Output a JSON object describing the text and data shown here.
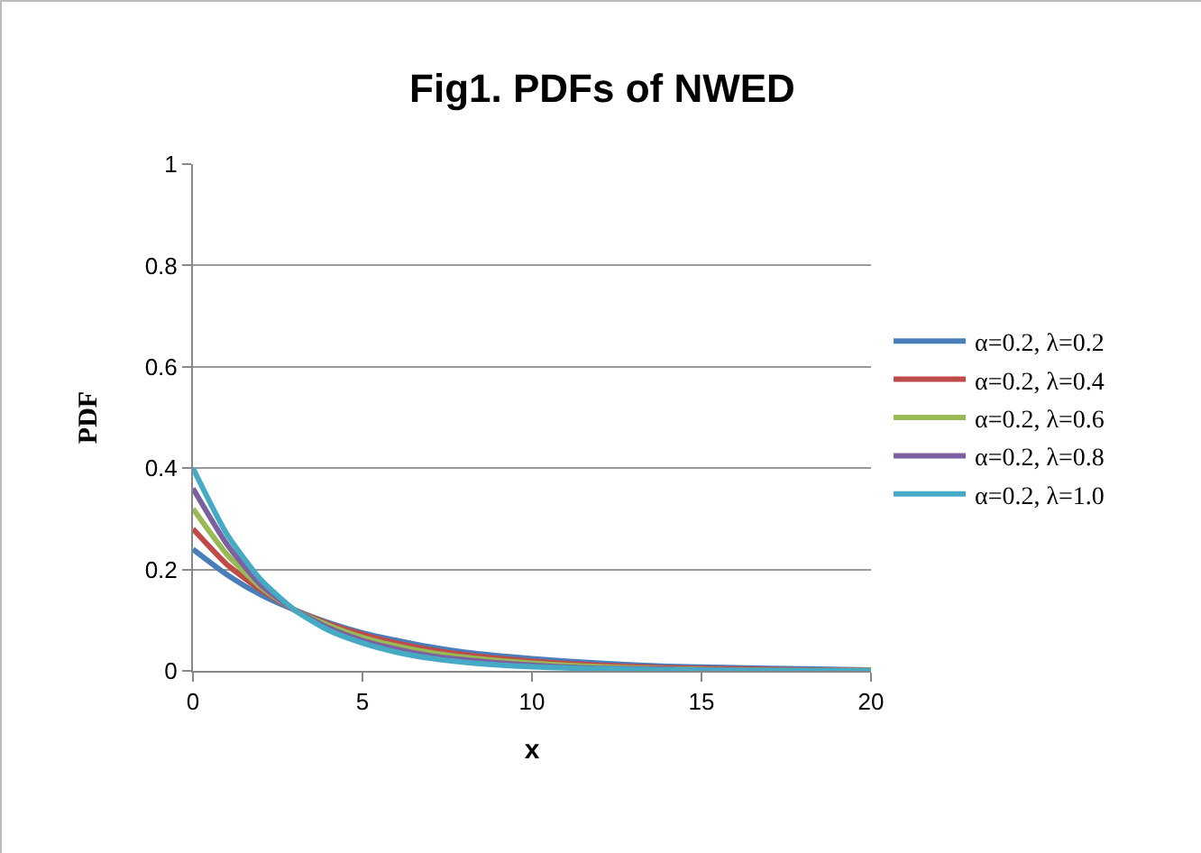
{
  "chart_data": {
    "type": "line",
    "title": "Fig1. PDFs of NWED",
    "xlabel": "x",
    "ylabel": "PDF",
    "x": [
      0,
      1,
      2,
      3,
      4,
      5,
      6,
      7,
      8,
      10,
      12,
      14,
      16,
      18,
      20
    ],
    "series": [
      {
        "name": "α=0.2, λ=0.2",
        "color": "#4a7ebb",
        "values": [
          0.24,
          0.19,
          0.15,
          0.12,
          0.095,
          0.075,
          0.06,
          0.047,
          0.037,
          0.024,
          0.015,
          0.009,
          0.006,
          0.004,
          0.002
        ]
      },
      {
        "name": "α=0.2, λ=0.4",
        "color": "#be4b48",
        "values": [
          0.28,
          0.21,
          0.16,
          0.12,
          0.093,
          0.072,
          0.055,
          0.042,
          0.032,
          0.019,
          0.011,
          0.006,
          0.004,
          0.002,
          0.001
        ]
      },
      {
        "name": "α=0.2, λ=0.6",
        "color": "#98b954",
        "values": [
          0.32,
          0.23,
          0.165,
          0.12,
          0.09,
          0.066,
          0.049,
          0.036,
          0.027,
          0.015,
          0.008,
          0.004,
          0.002,
          0.001,
          0.001
        ]
      },
      {
        "name": "α=0.2, λ=0.8",
        "color": "#7d60a0",
        "values": [
          0.36,
          0.25,
          0.17,
          0.12,
          0.085,
          0.06,
          0.043,
          0.03,
          0.022,
          0.011,
          0.005,
          0.003,
          0.001,
          0.001,
          0
        ]
      },
      {
        "name": "α=0.2, λ=1.0",
        "color": "#46aac5",
        "values": [
          0.4,
          0.27,
          0.18,
          0.12,
          0.08,
          0.055,
          0.037,
          0.025,
          0.017,
          0.008,
          0.004,
          0.002,
          0.001,
          0,
          0
        ]
      }
    ],
    "xlim": [
      0,
      20
    ],
    "xticks": [
      0,
      5,
      10,
      15,
      20
    ],
    "ylim": [
      0,
      1
    ],
    "yticks": [
      0,
      0.2,
      0.4,
      0.6,
      0.8,
      1
    ],
    "grid": "y",
    "legend": "right",
    "marker": "none",
    "line_style": "solid"
  }
}
